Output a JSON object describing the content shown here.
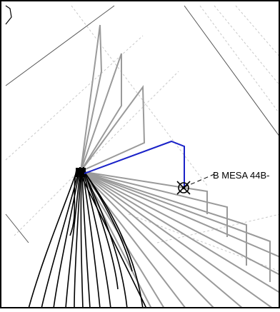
{
  "map": {
    "fix_label": "B MESA 44B-",
    "colors": {
      "background": "#ffffff",
      "frame": "#000000",
      "grid_solid": "#555555",
      "grid_dashed": "#c8c8c8",
      "track_gray": "#9a9a9a",
      "track_black": "#000000",
      "selected_track": "#1a22c8",
      "label_text": "#000000"
    },
    "icons": {
      "fix_marker": "crosshair-circle-icon"
    }
  }
}
